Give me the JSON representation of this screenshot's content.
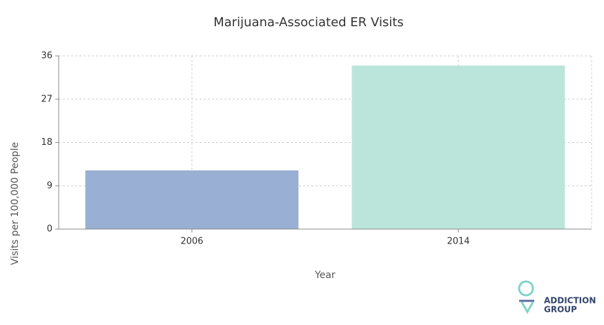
{
  "chart_data": {
    "type": "bar",
    "title": "Marijuana-Associated ER Visits",
    "x_label": "Year",
    "y_label": "Visits per 100,000 People",
    "categories": [
      "2006",
      "2014"
    ],
    "values": [
      12.2,
      34.0
    ],
    "colors": [
      "#99afd3",
      "#bbe5db"
    ],
    "ylim": [
      0,
      36
    ],
    "yticks": [
      0,
      9,
      18,
      27,
      36
    ],
    "grid": true
  },
  "logo": {
    "line1": "ADDICTION",
    "line2": "GROUP"
  }
}
